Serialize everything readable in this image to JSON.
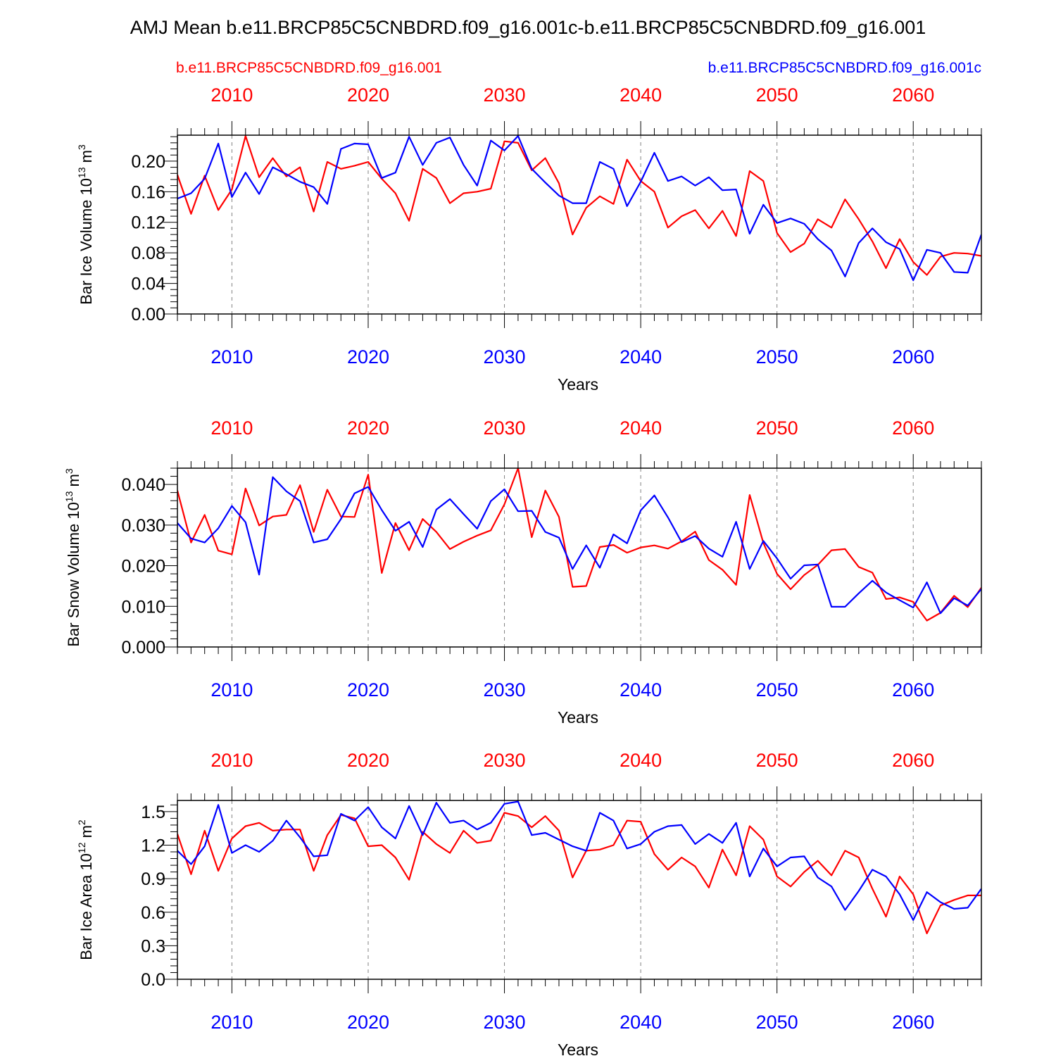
{
  "title": "AMJ Mean b.e11.BRCP85C5CNBDRD.f09_g16.001c-b.e11.BRCP85C5CNBDRD.f09_g16.001",
  "colors": {
    "case1": "#ff0000",
    "case2": "#0000ff",
    "axis": "#000000",
    "grid": "#808080"
  },
  "legend": {
    "case1": "b.e11.BRCP85C5CNBDRD.f09_g16.001",
    "case2": "b.e11.BRCP85C5CNBDRD.f09_g16.001c"
  },
  "chart_data": [
    {
      "type": "line",
      "ylabel": "Bar Ice Volume 10",
      "ylabel_exp": "13",
      "ylabel_unit": " m",
      "ylabel_unit_exp": "3",
      "xlabel": "Years",
      "xlim": [
        2006,
        2065
      ],
      "ylim": [
        0.0,
        0.234
      ],
      "yticks": [
        "0.00",
        "0.04",
        "0.08",
        "0.12",
        "0.16",
        "0.20"
      ],
      "ytick_values": [
        0.0,
        0.04,
        0.08,
        0.12,
        0.16,
        0.2
      ],
      "xticks": [
        "2010",
        "2020",
        "2030",
        "2040",
        "2050",
        "2060"
      ],
      "xtick_values": [
        2010,
        2020,
        2030,
        2040,
        2050,
        2060
      ],
      "x_start": 2006,
      "series": [
        {
          "name": "b.e11.BRCP85C5CNBDRD.f09_g16.001",
          "color": "red",
          "values": [
            0.182,
            0.131,
            0.181,
            0.136,
            0.163,
            0.233,
            0.179,
            0.204,
            0.18,
            0.192,
            0.134,
            0.199,
            0.19,
            0.194,
            0.199,
            0.177,
            0.158,
            0.122,
            0.19,
            0.178,
            0.145,
            0.158,
            0.16,
            0.164,
            0.226,
            0.224,
            0.188,
            0.204,
            0.171,
            0.104,
            0.139,
            0.154,
            0.144,
            0.202,
            0.174,
            0.16,
            0.113,
            0.128,
            0.136,
            0.112,
            0.135,
            0.102,
            0.187,
            0.174,
            0.106,
            0.081,
            0.092,
            0.124,
            0.113,
            0.15,
            0.124,
            0.095,
            0.06,
            0.098,
            0.068,
            0.051,
            0.075,
            0.08,
            0.079,
            0.076
          ]
        },
        {
          "name": "b.e11.BRCP85C5CNBDRD.f09_g16.001c",
          "color": "blue",
          "values": [
            0.151,
            0.158,
            0.177,
            0.223,
            0.153,
            0.185,
            0.157,
            0.192,
            0.183,
            0.173,
            0.166,
            0.144,
            0.216,
            0.223,
            0.222,
            0.178,
            0.185,
            0.232,
            0.195,
            0.224,
            0.231,
            0.195,
            0.168,
            0.227,
            0.214,
            0.233,
            0.19,
            0.172,
            0.155,
            0.145,
            0.145,
            0.199,
            0.19,
            0.141,
            0.173,
            0.211,
            0.174,
            0.18,
            0.168,
            0.179,
            0.162,
            0.163,
            0.105,
            0.143,
            0.119,
            0.125,
            0.118,
            0.098,
            0.083,
            0.049,
            0.093,
            0.112,
            0.094,
            0.085,
            0.044,
            0.084,
            0.08,
            0.055,
            0.054,
            0.104
          ]
        }
      ]
    },
    {
      "type": "line",
      "ylabel": "Bar Snow Volume 10",
      "ylabel_exp": "13",
      "ylabel_unit": " m",
      "ylabel_unit_exp": "3",
      "xlabel": "Years",
      "xlim": [
        2006,
        2065
      ],
      "ylim": [
        0.0,
        0.044
      ],
      "yticks": [
        "0.000",
        "0.010",
        "0.020",
        "0.030",
        "0.040"
      ],
      "ytick_values": [
        0.0,
        0.01,
        0.02,
        0.03,
        0.04
      ],
      "xticks": [
        "2010",
        "2020",
        "2030",
        "2040",
        "2050",
        "2060"
      ],
      "xtick_values": [
        2010,
        2020,
        2030,
        2040,
        2050,
        2060
      ],
      "x_start": 2006,
      "series": [
        {
          "name": "b.e11.BRCP85C5CNBDRD.f09_g16.001",
          "color": "red",
          "values": [
            0.0385,
            0.0257,
            0.0325,
            0.0237,
            0.0228,
            0.039,
            0.0299,
            0.0321,
            0.0325,
            0.0398,
            0.0283,
            0.0387,
            0.0321,
            0.032,
            0.0424,
            0.0182,
            0.0305,
            0.0238,
            0.0315,
            0.0283,
            0.0241,
            0.0259,
            0.0274,
            0.0287,
            0.0351,
            0.044,
            0.027,
            0.0385,
            0.032,
            0.0148,
            0.015,
            0.0246,
            0.0251,
            0.0232,
            0.0245,
            0.025,
            0.0242,
            0.026,
            0.0284,
            0.0214,
            0.019,
            0.0153,
            0.0374,
            0.0256,
            0.018,
            0.0142,
            0.0177,
            0.0202,
            0.0238,
            0.0241,
            0.0197,
            0.0183,
            0.0118,
            0.0122,
            0.0111,
            0.0065,
            0.0084,
            0.0126,
            0.0098,
            0.0146
          ]
        },
        {
          "name": "b.e11.BRCP85C5CNBDRD.f09_g16.001c",
          "color": "blue",
          "values": [
            0.0305,
            0.0267,
            0.0257,
            0.0292,
            0.0347,
            0.0307,
            0.0178,
            0.0418,
            0.0383,
            0.0359,
            0.0257,
            0.0265,
            0.0315,
            0.0378,
            0.0394,
            0.0337,
            0.0286,
            0.0308,
            0.0246,
            0.0338,
            0.0364,
            0.0327,
            0.0291,
            0.0359,
            0.0388,
            0.0334,
            0.0335,
            0.0283,
            0.0269,
            0.0192,
            0.025,
            0.0195,
            0.0277,
            0.0255,
            0.0336,
            0.0373,
            0.0319,
            0.0258,
            0.0273,
            0.0242,
            0.0222,
            0.0308,
            0.0192,
            0.0261,
            0.0218,
            0.0168,
            0.0201,
            0.0203,
            0.0099,
            0.0099,
            0.0132,
            0.0163,
            0.0134,
            0.0115,
            0.0097,
            0.0159,
            0.0083,
            0.012,
            0.0102,
            0.0143
          ]
        }
      ]
    },
    {
      "type": "line",
      "ylabel": "Bar Ice Area 10",
      "ylabel_exp": "12",
      "ylabel_unit": " m",
      "ylabel_unit_exp": "2",
      "xlabel": "Years",
      "xlim": [
        2006,
        2065
      ],
      "ylim": [
        0.0,
        1.6
      ],
      "yticks": [
        "0.0",
        "0.3",
        "0.6",
        "0.9",
        "1.2",
        "1.5"
      ],
      "ytick_values": [
        0.0,
        0.3,
        0.6,
        0.9,
        1.2,
        1.5
      ],
      "xticks": [
        "2010",
        "2020",
        "2030",
        "2040",
        "2050",
        "2060"
      ],
      "xtick_values": [
        2010,
        2020,
        2030,
        2040,
        2050,
        2060
      ],
      "x_start": 2006,
      "series": [
        {
          "name": "b.e11.BRCP85C5CNBDRD.f09_g16.001",
          "color": "red",
          "values": [
            1.3,
            0.94,
            1.33,
            0.97,
            1.26,
            1.37,
            1.4,
            1.33,
            1.34,
            1.34,
            0.97,
            1.29,
            1.47,
            1.44,
            1.19,
            1.2,
            1.09,
            0.89,
            1.32,
            1.21,
            1.13,
            1.33,
            1.22,
            1.24,
            1.49,
            1.46,
            1.36,
            1.46,
            1.33,
            0.91,
            1.15,
            1.16,
            1.2,
            1.42,
            1.41,
            1.12,
            0.98,
            1.09,
            1.01,
            0.82,
            1.16,
            0.93,
            1.37,
            1.25,
            0.92,
            0.83,
            0.96,
            1.06,
            0.93,
            1.15,
            1.09,
            0.81,
            0.56,
            0.92,
            0.76,
            0.41,
            0.66,
            0.71,
            0.75,
            0.75
          ]
        },
        {
          "name": "b.e11.BRCP85C5CNBDRD.f09_g16.001c",
          "color": "blue",
          "values": [
            1.15,
            1.03,
            1.19,
            1.56,
            1.13,
            1.2,
            1.14,
            1.24,
            1.42,
            1.27,
            1.1,
            1.11,
            1.48,
            1.42,
            1.54,
            1.36,
            1.26,
            1.55,
            1.29,
            1.58,
            1.4,
            1.42,
            1.34,
            1.4,
            1.57,
            1.59,
            1.29,
            1.31,
            1.25,
            1.19,
            1.15,
            1.49,
            1.42,
            1.17,
            1.21,
            1.32,
            1.37,
            1.38,
            1.21,
            1.3,
            1.22,
            1.4,
            0.92,
            1.17,
            1.01,
            1.09,
            1.1,
            0.91,
            0.83,
            0.62,
            0.79,
            0.98,
            0.92,
            0.76,
            0.53,
            0.78,
            0.69,
            0.63,
            0.64,
            0.81
          ]
        }
      ]
    }
  ]
}
